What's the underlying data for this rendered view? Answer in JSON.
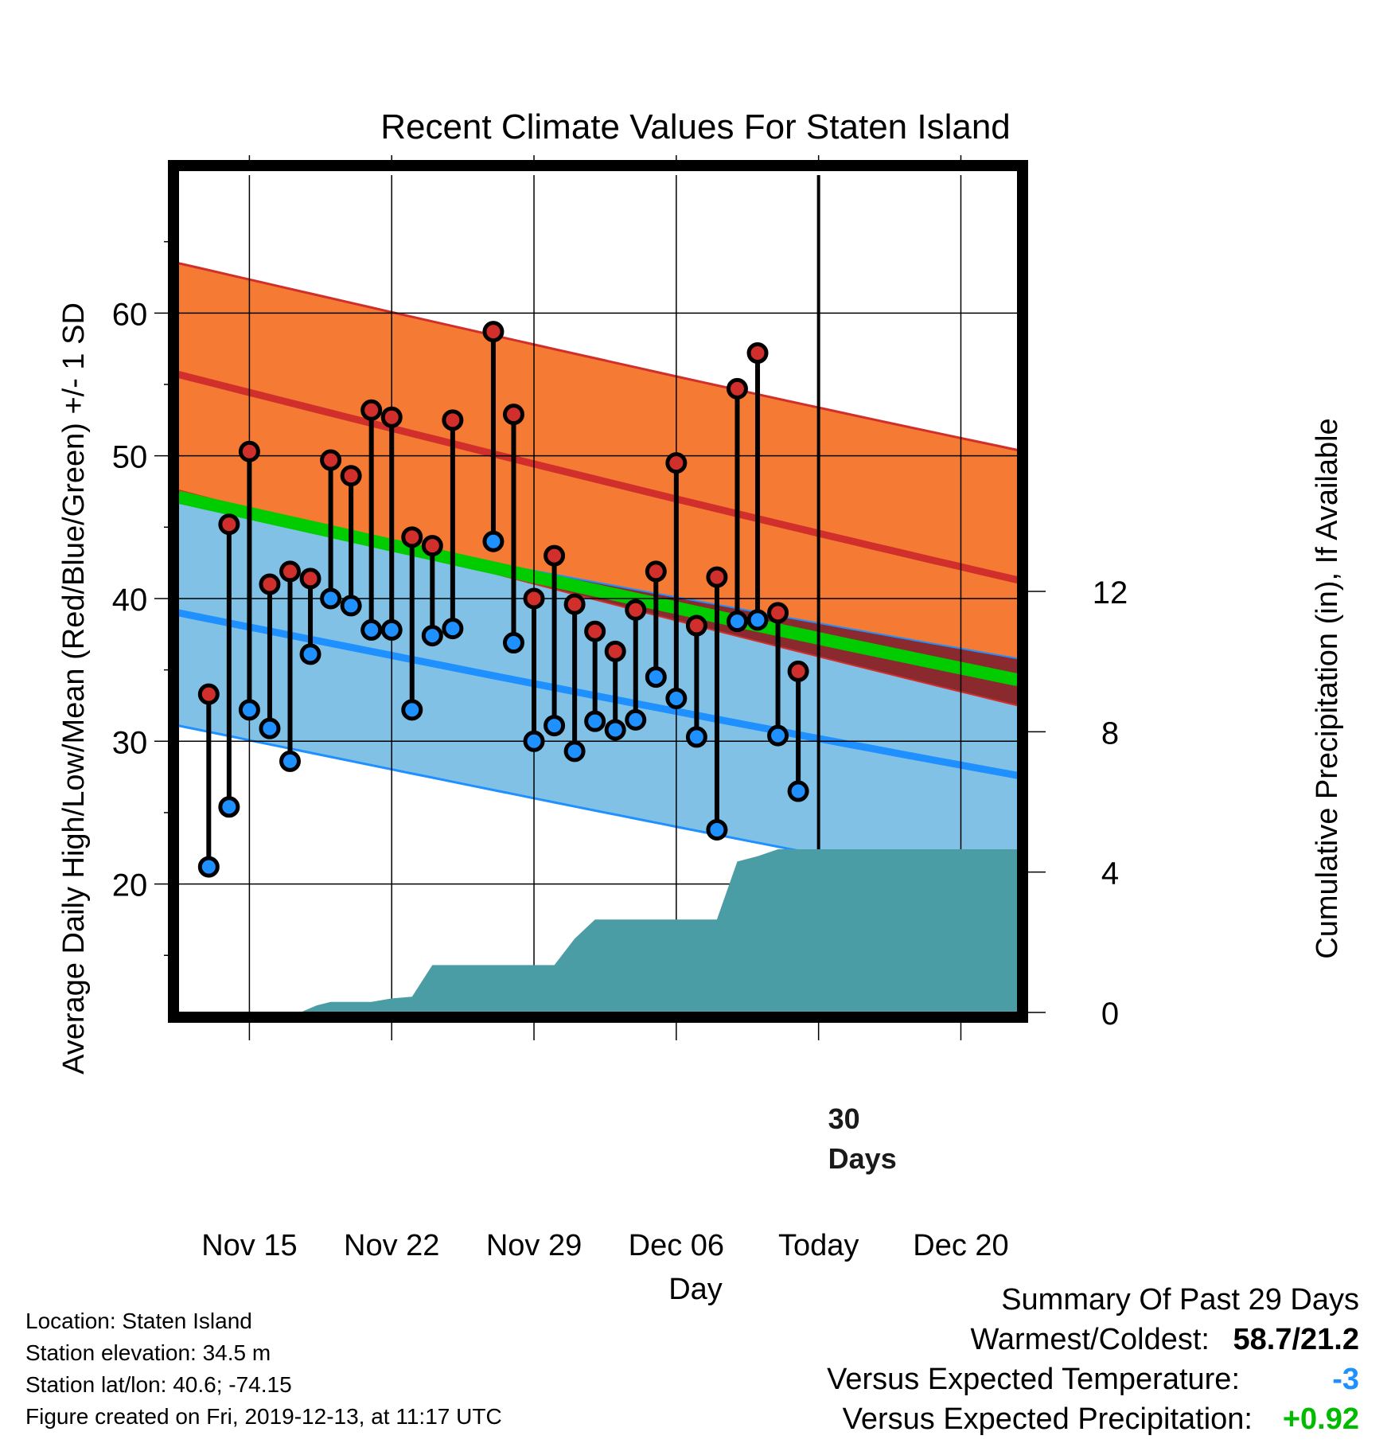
{
  "chart_data": {
    "type": "line",
    "title": "Recent Climate Values For Staten Island",
    "xlabel": "Day",
    "ylabel": "Average Daily High/Low/Mean (Red/Blue/Green) +/- 1 SD",
    "y2label": "Cumulative Precipitation (in), If Available",
    "x_ticks": [
      "Nov 15",
      "Nov 22",
      "Nov 29",
      "Dec 06",
      "Today",
      "Dec 20"
    ],
    "x_tick_days": [
      -28,
      -21,
      -14,
      -7,
      0,
      7
    ],
    "x_range_days": [
      -31.5,
      9.8
    ],
    "ylim": [
      11,
      70
    ],
    "y_ticks": [
      20,
      30,
      40,
      50,
      60
    ],
    "y2lim": [
      0,
      24
    ],
    "y2_ticks": [
      0,
      4,
      8,
      12
    ],
    "today_marker": "30\nDays",
    "normal_high": {
      "start": 55.7,
      "end": 41.3,
      "sd_upper_start": 63.5,
      "sd_upper_end": 50.4,
      "sd_lower_start": 47.6,
      "sd_lower_end": 32.5
    },
    "normal_low": {
      "start": 39.0,
      "end": 27.6,
      "sd_upper_start": 46.7,
      "sd_upper_end": 35.8,
      "sd_lower_start": 31.1,
      "sd_lower_end": 19.4
    },
    "normal_mean": {
      "start": 47.1,
      "end": 34.3
    },
    "series": [
      {
        "name": "Daily High",
        "day_offsets": [
          -30,
          -29,
          -28,
          -27,
          -26,
          -25,
          -24,
          -23,
          -22,
          -21,
          -20,
          -19,
          -18,
          -16,
          -15,
          -14,
          -13,
          -12,
          -11,
          -10,
          -9,
          -8,
          -7,
          -6,
          -5,
          -4,
          -3,
          -2,
          -1
        ],
        "values": [
          33.3,
          45.2,
          50.3,
          41.0,
          41.9,
          41.4,
          49.7,
          48.6,
          53.2,
          52.7,
          44.3,
          43.7,
          52.5,
          58.7,
          52.9,
          40.0,
          43.0,
          39.6,
          37.7,
          36.3,
          39.2,
          41.9,
          49.5,
          38.1,
          41.5,
          54.7,
          57.2,
          39.0,
          34.9
        ]
      },
      {
        "name": "Daily Low",
        "day_offsets": [
          -30,
          -29,
          -28,
          -27,
          -26,
          -25,
          -24,
          -23,
          -22,
          -21,
          -20,
          -19,
          -18,
          -16,
          -15,
          -14,
          -13,
          -12,
          -11,
          -10,
          -9,
          -8,
          -7,
          -6,
          -5,
          -4,
          -3,
          -2,
          -1
        ],
        "values": [
          21.2,
          25.4,
          32.2,
          30.9,
          28.6,
          36.1,
          40.0,
          39.5,
          37.8,
          37.8,
          32.2,
          37.4,
          37.9,
          44.0,
          36.9,
          30.0,
          31.1,
          29.3,
          31.4,
          30.8,
          31.5,
          34.5,
          33.0,
          30.3,
          23.8,
          38.4,
          38.5,
          30.4,
          26.5
        ]
      },
      {
        "name": "Cumulative Precipitation",
        "day_offsets": [
          -25.5,
          -24.7,
          -24,
          -23,
          -22,
          -21,
          -20,
          -19,
          -18,
          -17,
          -16,
          -15,
          -14,
          -13,
          -12,
          -11,
          -10,
          -9,
          -8,
          -7,
          -6,
          -5,
          -4,
          -3,
          -2,
          -1,
          0,
          9.8
        ],
        "values": [
          0,
          0.2,
          0.3,
          0.3,
          0.3,
          0.4,
          0.45,
          1.35,
          1.35,
          1.35,
          1.35,
          1.35,
          1.35,
          1.35,
          2.1,
          2.65,
          2.65,
          2.65,
          2.65,
          2.65,
          2.65,
          2.65,
          4.3,
          4.45,
          4.65,
          4.65,
          4.65,
          4.65
        ]
      }
    ]
  },
  "footer": {
    "location": "Location: Staten Island",
    "elevation": "Station elevation: 34.5 m",
    "latlon": "Station lat/lon: 40.6; -74.15",
    "created": "Figure created on Fri, 2019-12-13, at 11:17 UTC"
  },
  "summary": {
    "heading": "Summary Of Past 29 Days",
    "warmest_label": "Warmest/Coldest:",
    "warmest_value": "58.7/21.2",
    "temp_label": "Versus Expected Temperature:",
    "temp_value": "-3",
    "precip_label": "Versus Expected Precipitation:",
    "precip_value": "+0.92"
  },
  "colors": {
    "high_band": "#f57a33",
    "high_line": "#d12f2b",
    "low_band": "#82c1e6",
    "low_line": "#1e90ff",
    "mean_line": "#00cc00",
    "high_low_overlap": "#8b1a1a",
    "precip": "#4a9da4",
    "high_marker": "#d12f2b",
    "low_marker": "#1e90ff",
    "temp_value": "#1e90ff",
    "precip_value": "#00bb00"
  }
}
